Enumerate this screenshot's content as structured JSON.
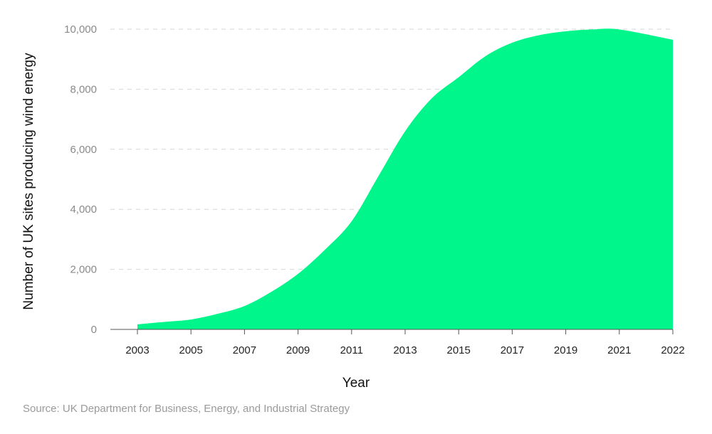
{
  "chart_data": {
    "type": "area",
    "title": "",
    "xlabel": "Year",
    "ylabel": "Number of UK sites producing wind energy",
    "ylim": [
      0,
      10000
    ],
    "yticks": [
      0,
      2000,
      4000,
      6000,
      8000,
      10000
    ],
    "ytick_labels": [
      "0",
      "2,000",
      "4,000",
      "6,000",
      "8,000",
      "10,000"
    ],
    "xtick_labels": [
      "2003",
      "2005",
      "2007",
      "2009",
      "2011",
      "2013",
      "2015",
      "2017",
      "2019",
      "2021",
      "2022"
    ],
    "grid": "horizontal dashed",
    "color": "#00f58a",
    "x": [
      2003,
      2004,
      2005,
      2006,
      2007,
      2008,
      2009,
      2010,
      2011,
      2012,
      2013,
      2014,
      2015,
      2016,
      2017,
      2018,
      2019,
      2020,
      2021,
      2022
    ],
    "values": [
      170,
      250,
      330,
      520,
      780,
      1250,
      1850,
      2650,
      3600,
      5100,
      6600,
      7700,
      8400,
      9100,
      9550,
      9800,
      9930,
      9990,
      9990,
      9650
    ]
  },
  "source": "Source: UK Department for Business, Energy, and Industrial Strategy"
}
